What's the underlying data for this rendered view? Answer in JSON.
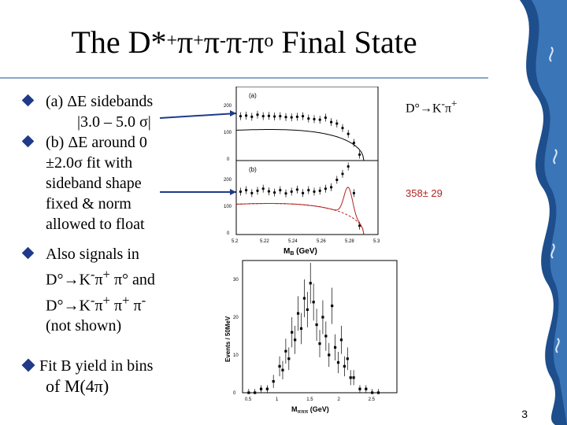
{
  "slide": {
    "title_main": "The D*",
    "title_sup1": "+",
    "title_pi1": "π",
    "title_sup2": "+",
    "title_pi2": "π",
    "title_sup3": "-",
    "title_pi3": "π",
    "title_sup4": "-",
    "title_pi4": "π",
    "title_sup5": "o",
    "title_tail": " Final State",
    "page_number": "3"
  },
  "bullets": {
    "b1_line1": "(a) ΔE  sidebands",
    "b1_line2": "|3.0 – 5.0 σ|",
    "b2_line1": "(b) ΔE around 0",
    "b2_line2": "±2.0σ  fit with",
    "b2_line3": "sideband shape",
    "b2_line4": "fixed & norm",
    "b2_line5": "allowed to float",
    "b3_line1": "Also signals in",
    "b3_line2": "D°→K",
    "b3_line2_sup": "-",
    "b3_line2_b": "π",
    "b3_line2_sup2": "+",
    "b3_line2_c": " π° and",
    "b3_line3": "D°→K",
    "b3_line3_sup": "-",
    "b3_line3_b": "π",
    "b3_line3_sup2": "+",
    "b3_line3_c": " π",
    "b3_line3_sup3": "+",
    "b3_line3_d": " π",
    "b3_line3_sup4": "-",
    "b3_line4": "(not shown)",
    "fit_line1": "Fit B yield in bins",
    "fit_line2": "of M(4π)"
  },
  "annotations": {
    "decay_label": "D°→K",
    "decay_sup1": "-",
    "decay_pi": "π",
    "decay_sup2": "+",
    "yield_label": "358± 29"
  },
  "plots": {
    "top_panel_a_label": "(a)",
    "top_panel_b_label": "(b)",
    "top_xlabel": "M",
    "top_xlabel_sub": "B",
    "top_xlabel_unit": " (GeV)",
    "top_yticks": [
      "200",
      "100",
      "0"
    ],
    "top_xticks": [
      "5.2",
      "5.22",
      "5.24",
      "5.26",
      "5.28",
      "5.3"
    ],
    "bottom_ylabel": "Events / 50MeV",
    "bottom_xlabel": "M",
    "bottom_xlabel_sub": "πππ",
    "bottom_xlabel_unit": " (GeV)",
    "bottom_yticks": [
      "30",
      "20",
      "10",
      "0"
    ],
    "bottom_xticks": [
      "0.5",
      "1",
      "1.5",
      "2",
      "2.5"
    ]
  },
  "chart_data": [
    {
      "type": "scatter",
      "panel": "(a)",
      "xlim": [
        5.2,
        5.3
      ],
      "ylim": [
        0,
        250
      ],
      "x": [
        5.203,
        5.207,
        5.211,
        5.215,
        5.219,
        5.223,
        5.227,
        5.231,
        5.235,
        5.239,
        5.243,
        5.247,
        5.251,
        5.255,
        5.259,
        5.263,
        5.267,
        5.271,
        5.275,
        5.279,
        5.283,
        5.287
      ],
      "y": [
        150,
        152,
        148,
        155,
        150,
        151,
        149,
        150,
        147,
        146,
        148,
        150,
        142,
        140,
        138,
        145,
        130,
        125,
        110,
        90,
        60,
        20
      ],
      "fit": "argus"
    },
    {
      "type": "scatter",
      "panel": "(b)",
      "xlim": [
        5.2,
        5.3
      ],
      "ylim": [
        0,
        250
      ],
      "x": [
        5.203,
        5.207,
        5.211,
        5.215,
        5.219,
        5.223,
        5.227,
        5.231,
        5.235,
        5.239,
        5.243,
        5.247,
        5.251,
        5.255,
        5.259,
        5.263,
        5.267,
        5.271,
        5.275,
        5.279,
        5.283,
        5.287
      ],
      "y": [
        145,
        150,
        140,
        148,
        155,
        146,
        142,
        150,
        139,
        145,
        152,
        140,
        150,
        145,
        148,
        155,
        160,
        185,
        205,
        230,
        140,
        30
      ],
      "fit": "argus + gaussian"
    },
    {
      "type": "scatter",
      "title": "",
      "xlabel": "M πππ (GeV)",
      "ylabel": "Events / 50MeV",
      "xlim": [
        0.4,
        2.9
      ],
      "ylim": [
        0,
        35
      ],
      "x": [
        0.5,
        0.6,
        0.7,
        0.8,
        0.9,
        1.0,
        1.05,
        1.1,
        1.15,
        1.2,
        1.25,
        1.3,
        1.35,
        1.4,
        1.45,
        1.5,
        1.55,
        1.6,
        1.65,
        1.7,
        1.75,
        1.8,
        1.85,
        1.9,
        1.95,
        2.0,
        2.05,
        2.1,
        2.15,
        2.2,
        2.3,
        2.4,
        2.5,
        2.6
      ],
      "y": [
        0,
        0,
        1,
        1,
        3,
        7,
        6,
        11,
        9,
        16,
        14,
        21,
        17,
        25,
        22,
        29,
        24,
        18,
        13,
        20,
        15,
        10,
        23,
        12,
        8,
        14,
        7,
        9,
        4,
        4,
        1,
        1,
        0,
        0
      ]
    }
  ]
}
